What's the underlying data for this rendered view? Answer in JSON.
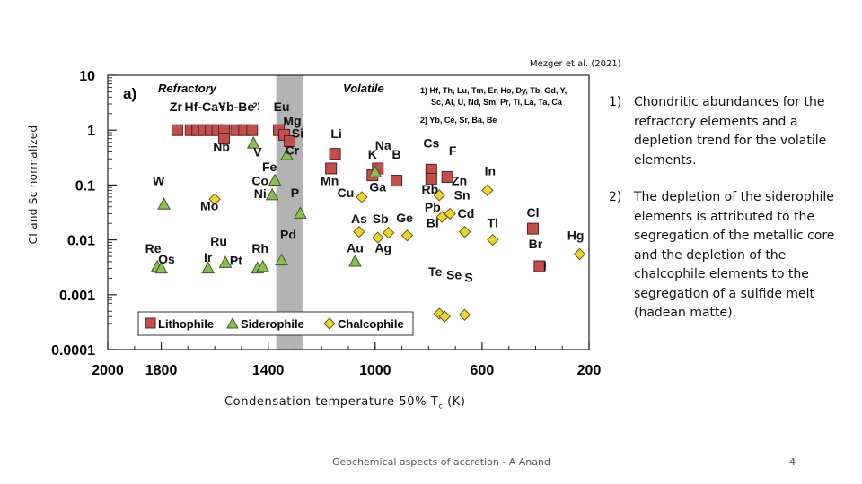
{
  "slide": {
    "credit": "Mezger et al. (2021)",
    "ylabel": "CI and Sc normalized",
    "xlabel_main": "Condensation temperature 50% T",
    "xlabel_sub": "c",
    "xlabel_unit": " (K)",
    "notes": [
      {
        "num": "1)",
        "text": "Chondritic abundances for the refractory elements and a depletion trend for the volatile elements."
      },
      {
        "num": "2)",
        "text": "The depletion of the siderophile elements is attributed to the segregation of the metallic core and the depletion of the chalcophile elements to the segregation of a sulfide melt (hadean matte)."
      }
    ],
    "footer": "Geochemical aspects of accretion - A Anand",
    "page_number": "4"
  },
  "chart_data": {
    "type": "scatter",
    "panel_label": "a)",
    "x_range": [
      2000,
      200
    ],
    "x_ticks": [
      "2000",
      "1800",
      "1400",
      "1000",
      "600",
      "200"
    ],
    "x_tick_values": [
      2000,
      1800,
      1400,
      1000,
      600,
      200
    ],
    "y_scale": "log",
    "y_range": [
      0.0001,
      10
    ],
    "y_ticks": [
      "10",
      "1",
      "0.1",
      "0.01",
      "0.001",
      "0.0001"
    ],
    "y_tick_values": [
      10,
      1,
      0.1,
      0.01,
      0.001,
      0.0001
    ],
    "shaded_band": [
      1370,
      1270
    ],
    "region_labels": [
      "Refractory",
      "Volatile"
    ],
    "footnotes": [
      "1) Hf, Th, Lu, Tm, Er, Ho, Dy, Tb, Gd, Y,",
      "Sc, Al, U, Nd, Sm, Pr, Ti, La, Ta, Ca",
      "2) Yb, Ce, Sr, Ba, Be"
    ],
    "legend": {
      "placement": "bottom-inside",
      "entries": [
        "Lithophile",
        "Siderophile",
        "Chalcophile"
      ]
    },
    "colors": {
      "Lithophile": "#c0504d",
      "Siderophile": "#8fbc5a",
      "Chalcophile": "#e8d43c",
      "band": "#b3b3b3"
    },
    "element_labels": [
      {
        "text": "Zr",
        "x": 1745,
        "y": 2.2
      },
      {
        "text": "Hf-Ca",
        "x": 1650,
        "y": 2.2
      },
      {
        "text": "1)",
        "x": 1574,
        "y": 2.5
      },
      {
        "text": "Yb-Be",
        "x": 1520,
        "y": 2.2
      },
      {
        "text": "2)",
        "x": 1444,
        "y": 2.5
      },
      {
        "text": "Eu",
        "x": 1350,
        "y": 2.2
      },
      {
        "text": "Mg",
        "x": 1310,
        "y": 1.25
      },
      {
        "text": "Si",
        "x": 1290,
        "y": 0.73
      },
      {
        "text": "Nb",
        "x": 1575,
        "y": 0.42
      },
      {
        "text": "V",
        "x": 1440,
        "y": 0.33
      },
      {
        "text": "Cr",
        "x": 1310,
        "y": 0.36
      },
      {
        "text": "Li",
        "x": 1145,
        "y": 0.72
      },
      {
        "text": "Na",
        "x": 970,
        "y": 0.44
      },
      {
        "text": "K",
        "x": 1010,
        "y": 0.3
      },
      {
        "text": "B",
        "x": 920,
        "y": 0.3
      },
      {
        "text": "Cs",
        "x": 790,
        "y": 0.48
      },
      {
        "text": "F",
        "x": 710,
        "y": 0.35
      },
      {
        "text": "Fe",
        "x": 1395,
        "y": 0.18
      },
      {
        "text": "Co",
        "x": 1430,
        "y": 0.1
      },
      {
        "text": "Ni",
        "x": 1430,
        "y": 0.058
      },
      {
        "text": "Mn",
        "x": 1170,
        "y": 0.1
      },
      {
        "text": "Cu",
        "x": 1110,
        "y": 0.06
      },
      {
        "text": "Ga",
        "x": 990,
        "y": 0.077
      },
      {
        "text": "Rb",
        "x": 795,
        "y": 0.07
      },
      {
        "text": "Zn",
        "x": 685,
        "y": 0.1
      },
      {
        "text": "Sn",
        "x": 675,
        "y": 0.055
      },
      {
        "text": "In",
        "x": 570,
        "y": 0.15
      },
      {
        "text": "W",
        "x": 1810,
        "y": 0.1
      },
      {
        "text": "P",
        "x": 1300,
        "y": 0.06
      },
      {
        "text": "Mo",
        "x": 1620,
        "y": 0.035
      },
      {
        "text": "As",
        "x": 1060,
        "y": 0.02
      },
      {
        "text": "Sb",
        "x": 980,
        "y": 0.02
      },
      {
        "text": "Ge",
        "x": 890,
        "y": 0.021
      },
      {
        "text": "Pb",
        "x": 785,
        "y": 0.033
      },
      {
        "text": "Cd",
        "x": 660,
        "y": 0.025
      },
      {
        "text": "Bi",
        "x": 785,
        "y": 0.017
      },
      {
        "text": "Tl",
        "x": 560,
        "y": 0.017
      },
      {
        "text": "Cl",
        "x": 410,
        "y": 0.026
      },
      {
        "text": "Br",
        "x": 400,
        "y": 0.007
      },
      {
        "text": "Hg",
        "x": 250,
        "y": 0.01
      },
      {
        "text": "I",
        "x": 365,
        "y": 0.0028
      },
      {
        "text": "Re",
        "x": 1830,
        "y": 0.0058
      },
      {
        "text": "Os",
        "x": 1780,
        "y": 0.0037
      },
      {
        "text": "Ru",
        "x": 1585,
        "y": 0.0079
      },
      {
        "text": "Ir",
        "x": 1625,
        "y": 0.004
      },
      {
        "text": "Pd",
        "x": 1325,
        "y": 0.0105
      },
      {
        "text": "Rh",
        "x": 1430,
        "y": 0.0058
      },
      {
        "text": "Pt",
        "x": 1520,
        "y": 0.0035
      },
      {
        "text": "Au",
        "x": 1075,
        "y": 0.0059
      },
      {
        "text": "Ag",
        "x": 970,
        "y": 0.0059
      },
      {
        "text": "Te",
        "x": 775,
        "y": 0.0022
      },
      {
        "text": "Se",
        "x": 705,
        "y": 0.0019
      },
      {
        "text": "S",
        "x": 650,
        "y": 0.0017
      }
    ],
    "series": [
      {
        "name": "Lithophile",
        "marker": "square",
        "points": [
          {
            "x": 1740,
            "y": 1.0
          },
          {
            "x": 1690,
            "y": 1.0
          },
          {
            "x": 1665,
            "y": 1.0
          },
          {
            "x": 1640,
            "y": 1.0
          },
          {
            "x": 1615,
            "y": 1.0
          },
          {
            "x": 1590,
            "y": 1.0
          },
          {
            "x": 1565,
            "y": 1.0
          },
          {
            "x": 1520,
            "y": 1.0
          },
          {
            "x": 1490,
            "y": 1.0
          },
          {
            "x": 1460,
            "y": 1.0
          },
          {
            "x": 1360,
            "y": 1.0
          },
          {
            "x": 1565,
            "y": 0.7
          },
          {
            "x": 1340,
            "y": 0.82
          },
          {
            "x": 1320,
            "y": 0.63
          },
          {
            "x": 1150,
            "y": 0.37
          },
          {
            "x": 1165,
            "y": 0.2
          },
          {
            "x": 990,
            "y": 0.2
          },
          {
            "x": 1010,
            "y": 0.15
          },
          {
            "x": 920,
            "y": 0.12
          },
          {
            "x": 790,
            "y": 0.19
          },
          {
            "x": 790,
            "y": 0.13
          },
          {
            "x": 730,
            "y": 0.14
          },
          {
            "x": 410,
            "y": 0.016
          },
          {
            "x": 385,
            "y": 0.0033
          }
        ]
      },
      {
        "name": "Siderophile",
        "marker": "triangle",
        "points": [
          {
            "x": 1455,
            "y": 0.57
          },
          {
            "x": 1330,
            "y": 0.35
          },
          {
            "x": 1375,
            "y": 0.12
          },
          {
            "x": 1385,
            "y": 0.065
          },
          {
            "x": 1000,
            "y": 0.17
          },
          {
            "x": 1790,
            "y": 0.044
          },
          {
            "x": 1280,
            "y": 0.03
          },
          {
            "x": 1815,
            "y": 0.0032
          },
          {
            "x": 1800,
            "y": 0.003
          },
          {
            "x": 1625,
            "y": 0.003
          },
          {
            "x": 1560,
            "y": 0.0038
          },
          {
            "x": 1440,
            "y": 0.003
          },
          {
            "x": 1420,
            "y": 0.0032
          },
          {
            "x": 1350,
            "y": 0.0042
          },
          {
            "x": 1075,
            "y": 0.004
          }
        ]
      },
      {
        "name": "Chalcophile",
        "marker": "diamond",
        "points": [
          {
            "x": 1050,
            "y": 0.06
          },
          {
            "x": 1600,
            "y": 0.055
          },
          {
            "x": 1060,
            "y": 0.014
          },
          {
            "x": 990,
            "y": 0.011
          },
          {
            "x": 950,
            "y": 0.0135
          },
          {
            "x": 880,
            "y": 0.012
          },
          {
            "x": 760,
            "y": 0.065
          },
          {
            "x": 750,
            "y": 0.026
          },
          {
            "x": 720,
            "y": 0.03
          },
          {
            "x": 665,
            "y": 0.014
          },
          {
            "x": 580,
            "y": 0.08
          },
          {
            "x": 560,
            "y": 0.01
          },
          {
            "x": 235,
            "y": 0.0055
          },
          {
            "x": 760,
            "y": 0.00045
          },
          {
            "x": 740,
            "y": 0.0004
          },
          {
            "x": 665,
            "y": 0.00043
          }
        ]
      }
    ]
  }
}
